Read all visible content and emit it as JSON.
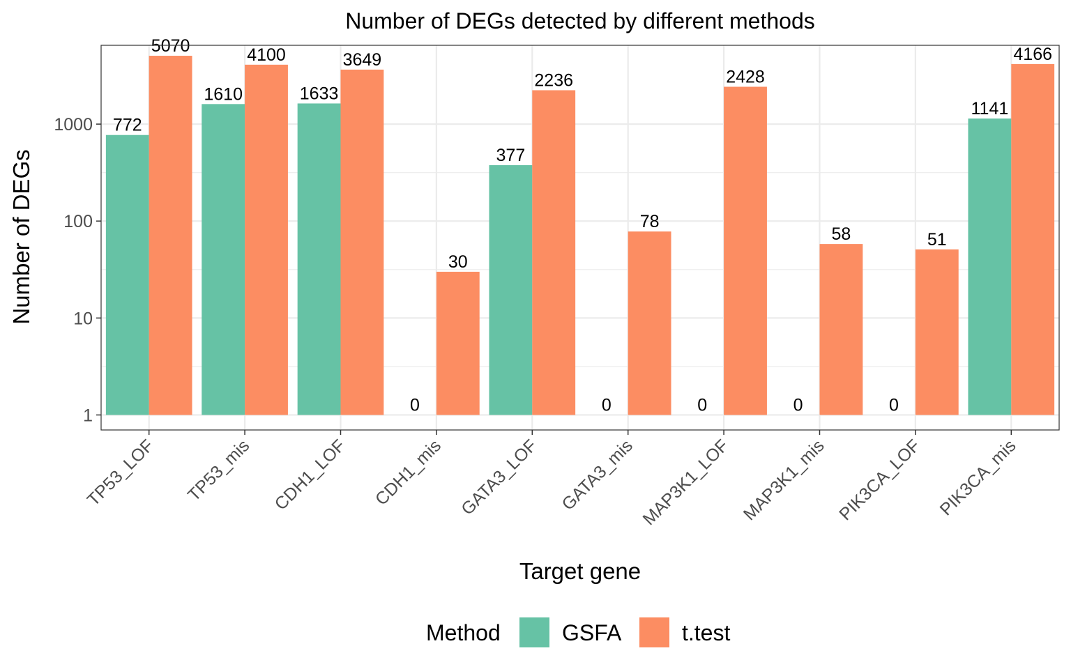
{
  "chart_data": {
    "type": "bar",
    "title": "Number of DEGs detected by different methods",
    "xlabel": "Target gene",
    "ylabel": "Number of DEGs",
    "yscale": "log10",
    "ylim": [
      0.7,
      6500
    ],
    "yticks": [
      1,
      10,
      100,
      1000
    ],
    "ytick_labels": [
      "1",
      "10",
      "100",
      "1000"
    ],
    "grid": true,
    "legend_position": "bottom",
    "legend_title": "Method",
    "categories": [
      "TP53_LOF",
      "TP53_mis",
      "CDH1_LOF",
      "CDH1_mis",
      "GATA3_LOF",
      "GATA3_mis",
      "MAP3K1_LOF",
      "MAP3K1_mis",
      "PIK3CA_LOF",
      "PIK3CA_mis"
    ],
    "series": [
      {
        "name": "GSFA",
        "color": "#66c2a5",
        "values": [
          772,
          1610,
          1633,
          0,
          377,
          0,
          0,
          0,
          0,
          1141
        ]
      },
      {
        "name": "t.test",
        "color": "#fc8d62",
        "values": [
          5070,
          4100,
          3649,
          30,
          2236,
          78,
          2428,
          58,
          51,
          4166
        ]
      }
    ]
  }
}
